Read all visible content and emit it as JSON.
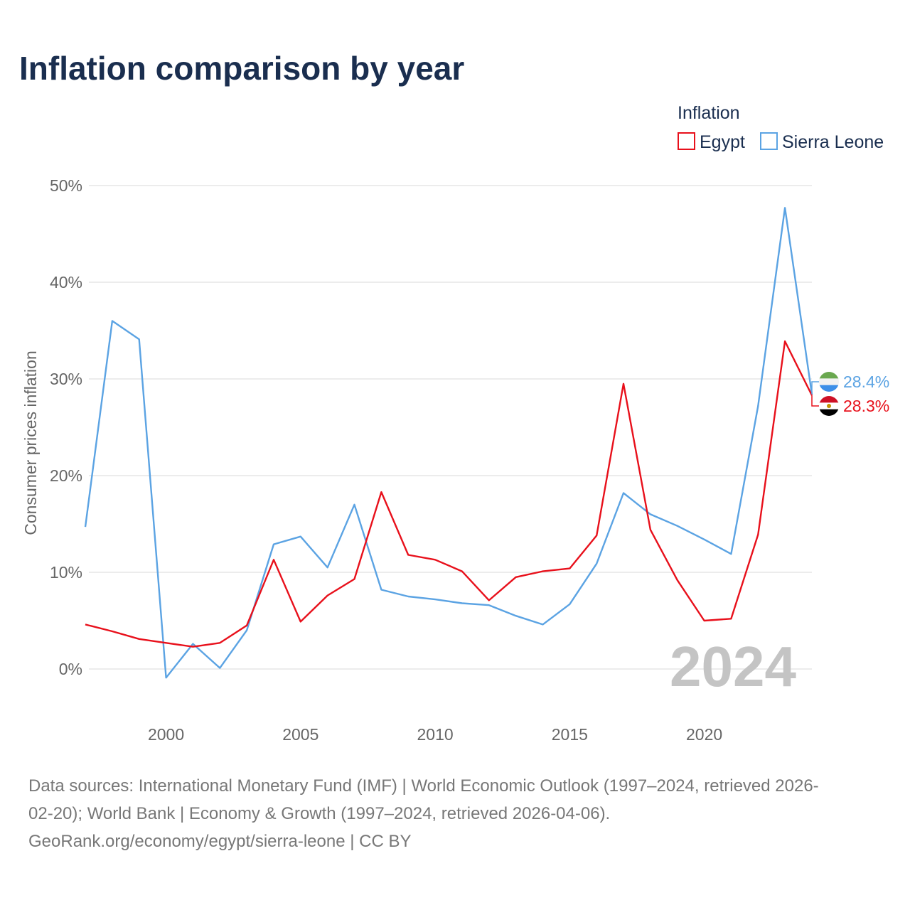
{
  "chart_data": {
    "type": "line",
    "title": "Inflation comparison by year",
    "legend_title": "Inflation",
    "legend_position": "top-right",
    "ylabel": "Consumer prices inflation",
    "xlabel": "",
    "x": [
      1997,
      1998,
      1999,
      2000,
      2001,
      2002,
      2003,
      2004,
      2005,
      2006,
      2007,
      2008,
      2009,
      2010,
      2011,
      2012,
      2013,
      2014,
      2015,
      2016,
      2017,
      2018,
      2019,
      2020,
      2021,
      2022,
      2023,
      2024
    ],
    "xlim": [
      1997,
      2024
    ],
    "ylim": [
      -5,
      50
    ],
    "x_ticks": [
      {
        "value": 2000,
        "label": "2000"
      },
      {
        "value": 2005,
        "label": "2005"
      },
      {
        "value": 2010,
        "label": "2010"
      },
      {
        "value": 2015,
        "label": "2015"
      },
      {
        "value": 2020,
        "label": "2020"
      }
    ],
    "y_ticks": [
      {
        "value": 0,
        "label": "0%"
      },
      {
        "value": 10,
        "label": "10%"
      },
      {
        "value": 20,
        "label": "20%"
      },
      {
        "value": 30,
        "label": "30%"
      },
      {
        "value": 40,
        "label": "40%"
      },
      {
        "value": 50,
        "label": "50%"
      }
    ],
    "grid": true,
    "current_year": "2024",
    "series": [
      {
        "name": "Egypt",
        "color": "#e8101b",
        "values": [
          4.6,
          3.9,
          3.1,
          2.7,
          2.3,
          2.7,
          4.5,
          11.3,
          4.9,
          7.6,
          9.3,
          18.3,
          11.8,
          11.3,
          10.1,
          7.1,
          9.5,
          10.1,
          10.4,
          13.8,
          29.5,
          14.4,
          9.2,
          5.0,
          5.2,
          13.9,
          33.9,
          28.3
        ],
        "end_label": "28.3%",
        "flag": "egypt"
      },
      {
        "name": "Sierra Leone",
        "color": "#5ba3e3",
        "values": [
          14.7,
          36.0,
          34.1,
          -0.9,
          2.6,
          0.1,
          4.0,
          12.9,
          13.7,
          10.5,
          17.0,
          8.2,
          7.5,
          7.2,
          6.8,
          6.6,
          5.5,
          4.6,
          6.7,
          10.9,
          18.2,
          16.0,
          14.8,
          13.4,
          11.9,
          27.2,
          47.7,
          28.4
        ],
        "end_label": "28.4%",
        "flag": "sierra-leone"
      }
    ]
  },
  "footer": {
    "line1": "Data sources: International Monetary Fund (IMF) | World Economic Outlook (1997–2024, retrieved 2026-",
    "line2": "02-20); World Bank | Economy & Growth (1997–2024, retrieved 2026-04-06).",
    "line3": "GeoRank.org/economy/egypt/sierra-leone | CC BY"
  }
}
